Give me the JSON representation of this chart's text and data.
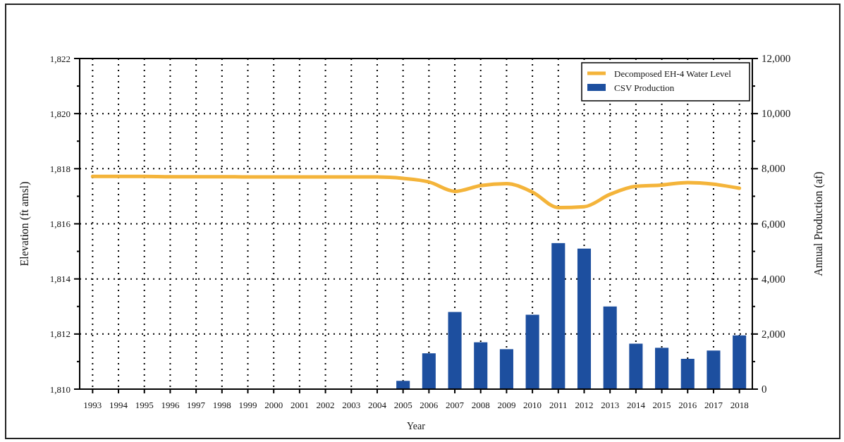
{
  "chart_data": {
    "type": "bar",
    "xlabel": "Year",
    "ylabel": "Elevation (ft amsl)",
    "y2label": "Annual Production (af)",
    "categories": [
      "1993",
      "1994",
      "1995",
      "1996",
      "1997",
      "1998",
      "1999",
      "2000",
      "2001",
      "2002",
      "2003",
      "2004",
      "2005",
      "2006",
      "2007",
      "2008",
      "2009",
      "2010",
      "2011",
      "2012",
      "2013",
      "2014",
      "2015",
      "2016",
      "2017",
      "2018"
    ],
    "series": [
      {
        "name": "Decomposed EH-4 Water Level",
        "type": "line",
        "color": "#f4b43a",
        "values": [
          1817.72,
          1817.72,
          1817.72,
          1817.71,
          1817.71,
          1817.71,
          1817.7,
          1817.7,
          1817.7,
          1817.7,
          1817.7,
          1817.7,
          1817.65,
          1817.52,
          1817.18,
          1817.39,
          1817.46,
          1817.15,
          1816.59,
          1816.62,
          1817.07,
          1817.36,
          1817.41,
          1817.5,
          1817.44,
          1817.29
        ]
      },
      {
        "name": "CSV Production",
        "axis": "y2",
        "color": "#1d4f9f",
        "values": [
          null,
          null,
          null,
          null,
          null,
          null,
          null,
          null,
          null,
          null,
          null,
          null,
          300,
          1300,
          2800,
          1700,
          1450,
          2700,
          5300,
          5100,
          3000,
          1650,
          1500,
          1100,
          1400,
          1950
        ]
      }
    ],
    "ylim": [
      1810,
      1822
    ],
    "yticks": [
      {
        "value": 1810,
        "label": "1,810"
      },
      {
        "value": 1811,
        "label": null
      },
      {
        "value": 1812,
        "label": "1,812"
      },
      {
        "value": 1813,
        "label": null
      },
      {
        "value": 1814,
        "label": "1,814"
      },
      {
        "value": 1815,
        "label": null
      },
      {
        "value": 1816,
        "label": "1,816"
      },
      {
        "value": 1817,
        "label": null
      },
      {
        "value": 1818,
        "label": "1,818"
      },
      {
        "value": 1819,
        "label": null
      },
      {
        "value": 1820,
        "label": "1,820"
      },
      {
        "value": 1821,
        "label": null
      },
      {
        "value": 1822,
        "label": "1,822"
      }
    ],
    "y2lim": [
      0,
      12000
    ],
    "y2ticks": [
      0,
      {
        "value": 1000,
        "label": null
      },
      {
        "value": 2000,
        "label": "2,000"
      },
      {
        "value": 3000,
        "label": null
      },
      {
        "value": 4000,
        "label": "4,000"
      },
      {
        "value": 5000,
        "label": null
      },
      {
        "value": 6000,
        "label": "6,000"
      },
      {
        "value": 7000,
        "label": null
      },
      {
        "value": 8000,
        "label": "8,000"
      },
      {
        "value": 9000,
        "label": null
      },
      {
        "value": 10000,
        "label": "10,000"
      },
      {
        "value": 11000,
        "label": null
      },
      {
        "value": 12000,
        "label": "12,000"
      }
    ],
    "grid": true,
    "legend": "top right"
  }
}
